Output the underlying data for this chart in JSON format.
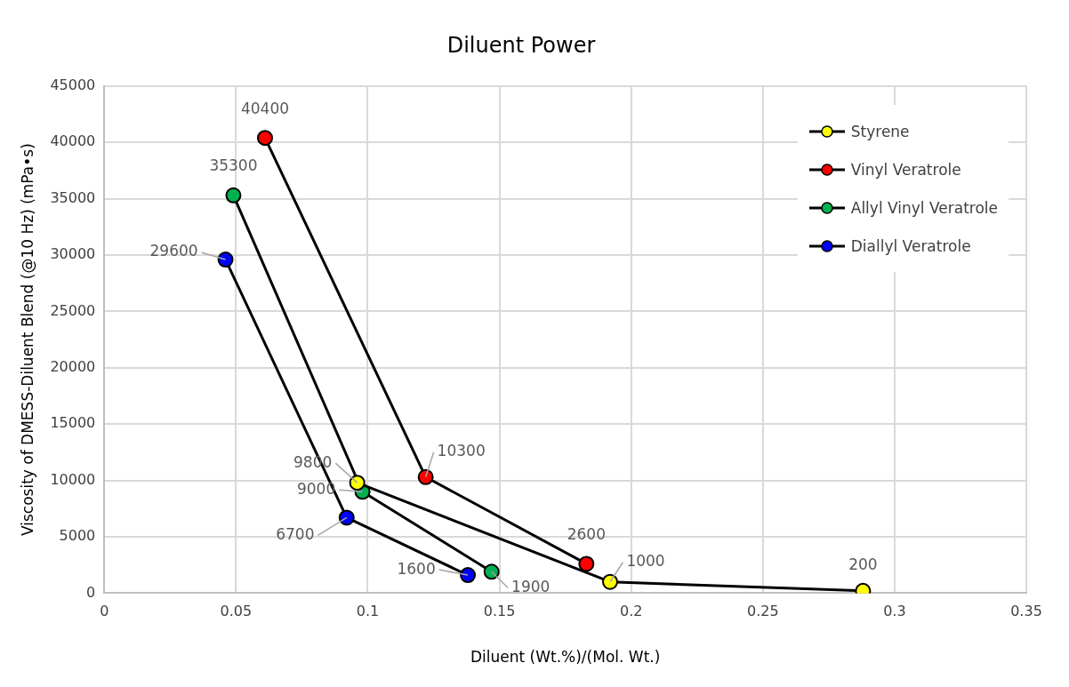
{
  "chart_data": {
    "type": "line",
    "title": "Diluent Power",
    "xlabel": "Diluent (Wt.%)/(Mol. Wt.)",
    "ylabel": "Viscosity of DMESS-Diluent Blend (@10 Hz) (mPa•s)",
    "xlim": [
      0,
      0.35
    ],
    "xticks": [
      0,
      0.05,
      0.1,
      0.15,
      0.2,
      0.25,
      0.3,
      0.35
    ],
    "ylim": [
      0,
      45000
    ],
    "yticks": [
      0,
      5000,
      10000,
      15000,
      20000,
      25000,
      30000,
      35000,
      40000,
      45000
    ],
    "grid": true,
    "legend": "top right",
    "marker": "circle",
    "line_style": "solid",
    "data_labels": true,
    "series": [
      {
        "name": "Styrene",
        "color": "#ffff00",
        "x": [
          0.096,
          0.192,
          0.288
        ],
        "values": [
          9800,
          1000,
          200
        ]
      },
      {
        "name": "Vinyl Veratrole",
        "color": "#ff0000",
        "x": [
          0.061,
          0.122,
          0.183
        ],
        "values": [
          40400,
          10300,
          2600
        ]
      },
      {
        "name": "Allyl Vinyl Veratrole",
        "color": "#00b050",
        "x": [
          0.049,
          0.098,
          0.147
        ],
        "values": [
          35300,
          9000,
          1900
        ]
      },
      {
        "name": "Diallyl Veratrole",
        "color": "#0000ff",
        "x": [
          0.046,
          0.092,
          0.138
        ],
        "values": [
          29600,
          6700,
          1600
        ]
      }
    ]
  }
}
